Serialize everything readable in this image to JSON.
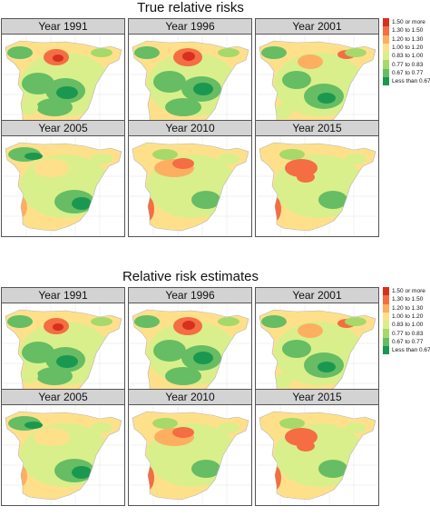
{
  "sections": [
    {
      "title": "True relative risks",
      "panels": [
        {
          "label": "Year 1991"
        },
        {
          "label": "Year 1996"
        },
        {
          "label": "Year 2001"
        },
        {
          "label": "Year 2005"
        },
        {
          "label": "Year 2010"
        },
        {
          "label": "Year 2015"
        }
      ]
    },
    {
      "title": "Relative risk estimates",
      "panels": [
        {
          "label": "Year 1991"
        },
        {
          "label": "Year 1996"
        },
        {
          "label": "Year 2001"
        },
        {
          "label": "Year 2005"
        },
        {
          "label": "Year 2010"
        },
        {
          "label": "Year 2015"
        }
      ]
    }
  ],
  "legend": {
    "items": [
      {
        "label": "1.50 or more",
        "color": "#d7301f"
      },
      {
        "label": "1.30 to 1.50",
        "color": "#f46d43"
      },
      {
        "label": "1.20 to 1.30",
        "color": "#fdae61"
      },
      {
        "label": "1.00 to 1.20",
        "color": "#fee08b"
      },
      {
        "label": "0.83 to 1.00",
        "color": "#d9ef8b"
      },
      {
        "label": "0.77 to 0.83",
        "color": "#a6d96a"
      },
      {
        "label": "0.67 to 0.77",
        "color": "#66bd63"
      },
      {
        "label": "Less than 0.67",
        "color": "#1a9850"
      }
    ]
  }
}
